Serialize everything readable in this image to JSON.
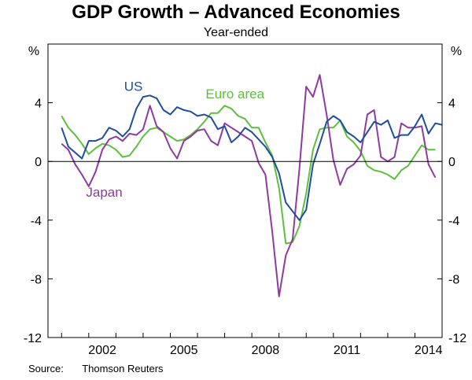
{
  "title": "GDP Growth – Advanced Economies",
  "subtitle": "Year-ended",
  "source": {
    "label": "Source:",
    "text": "Thomson Reuters"
  },
  "chart_data": {
    "type": "line",
    "title": "GDP Growth – Advanced Economies",
    "subtitle": "Year-ended",
    "ylabel_left": "%",
    "ylabel_right": "%",
    "ylim": [
      -12,
      8
    ],
    "yticks": [
      -12,
      -8,
      -4,
      0,
      4
    ],
    "yticklabels": [
      "-12",
      "-8",
      "-4",
      "0",
      "4"
    ],
    "xlim": [
      2000.5,
      2015.0
    ],
    "xticks": [
      2002,
      2005,
      2008,
      2011,
      2014
    ],
    "xticklabels": [
      "2002",
      "2005",
      "2008",
      "2011",
      "2014"
    ],
    "x_start": 2001.0,
    "x_step": 0.25,
    "series": [
      {
        "name": "US",
        "label": "US",
        "color": "#1f4e9c",
        "values": [
          2.3,
          1.0,
          0.6,
          0.2,
          1.4,
          1.4,
          1.6,
          2.3,
          2.1,
          1.7,
          2.2,
          3.6,
          4.4,
          4.5,
          4.3,
          3.5,
          3.2,
          3.7,
          3.5,
          3.4,
          3.1,
          3.2,
          3.0,
          2.2,
          2.4,
          1.3,
          1.7,
          2.3,
          2.0,
          1.5,
          1.0,
          0.3,
          -0.8,
          -2.8,
          -3.4,
          -4.0,
          -3.3,
          -0.2,
          1.2,
          2.7,
          3.1,
          2.8,
          2.0,
          1.7,
          1.3,
          2.0,
          2.7,
          2.5,
          2.8,
          1.6,
          1.8,
          1.8,
          2.4,
          3.2,
          1.9,
          2.6,
          2.5
        ]
      },
      {
        "name": "Euro area",
        "label": "Euro area",
        "color": "#5cbf3d",
        "values": [
          3.1,
          2.3,
          1.8,
          1.2,
          0.5,
          0.9,
          1.2,
          1.1,
          0.8,
          0.3,
          0.4,
          1.0,
          1.7,
          2.2,
          2.3,
          2.0,
          1.7,
          1.4,
          1.5,
          1.8,
          2.2,
          2.7,
          3.3,
          3.3,
          3.8,
          3.6,
          3.1,
          2.9,
          2.3,
          2.3,
          1.3,
          0.4,
          -1.8,
          -5.6,
          -5.5,
          -4.4,
          -2.2,
          0.8,
          2.2,
          2.3,
          2.3,
          2.8,
          1.7,
          1.3,
          0.7,
          -0.3,
          -0.6,
          -0.7,
          -0.9,
          -1.2,
          -0.6,
          -0.3,
          0.4,
          1.1,
          0.8,
          0.8
        ]
      },
      {
        "name": "Japan",
        "label": "Japan",
        "color": "#8e3a9f",
        "values": [
          1.2,
          0.8,
          -0.2,
          -0.9,
          -1.7,
          -0.7,
          0.8,
          1.5,
          1.7,
          1.4,
          1.9,
          1.8,
          2.2,
          3.8,
          2.4,
          2.0,
          0.9,
          0.2,
          1.4,
          1.7,
          2.1,
          2.2,
          1.4,
          1.1,
          2.6,
          2.3,
          2.0,
          1.7,
          1.4,
          -0.1,
          -0.9,
          -4.8,
          -9.2,
          -6.4,
          -5.3,
          -0.5,
          5.1,
          4.4,
          5.9,
          3.2,
          0.1,
          -1.6,
          -0.5,
          -0.2,
          0.4,
          3.2,
          3.5,
          0.3,
          0.0,
          0.3,
          2.6,
          2.3,
          2.3,
          2.4,
          -0.2,
          -1.1
        ]
      }
    ],
    "legend": "inline labels",
    "grid": false
  }
}
